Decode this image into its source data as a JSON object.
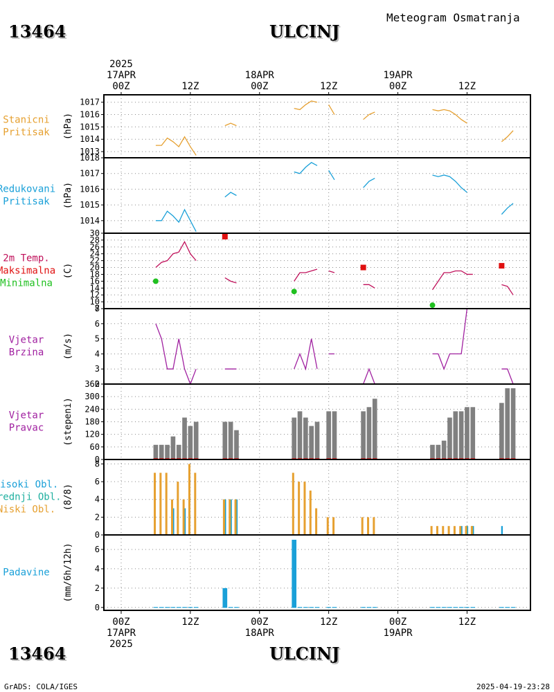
{
  "header": {
    "station_id": "13464",
    "station_name": "ULCINJ",
    "subtitle": "Meteogram Osmatranja"
  },
  "time_axis": {
    "top_labels": [
      {
        "hour": 0,
        "lines": [
          "2025",
          "17APR",
          "00Z"
        ]
      },
      {
        "hour": 12,
        "lines": [
          "12Z"
        ]
      },
      {
        "hour": 24,
        "lines": [
          "18APR",
          "00Z"
        ]
      },
      {
        "hour": 36,
        "lines": [
          "12Z"
        ]
      },
      {
        "hour": 48,
        "lines": [
          "19APR",
          "00Z"
        ]
      },
      {
        "hour": 60,
        "lines": [
          "12Z"
        ]
      }
    ],
    "bottom_labels": [
      {
        "hour": 0,
        "lines": [
          "00Z",
          "17APR",
          "2025"
        ]
      },
      {
        "hour": 12,
        "lines": [
          "12Z"
        ]
      },
      {
        "hour": 24,
        "lines": [
          "00Z",
          "18APR"
        ]
      },
      {
        "hour": 36,
        "lines": [
          "12Z"
        ]
      },
      {
        "hour": 48,
        "lines": [
          "00Z",
          "19APR"
        ]
      },
      {
        "hour": 60,
        "lines": [
          "12Z"
        ]
      }
    ],
    "x_range_hours": [
      -3,
      71
    ]
  },
  "footer": {
    "left": "GrADS: COLA/IGES",
    "right": "2025-04-19-23:28"
  },
  "chart_data": [
    {
      "type": "line",
      "panel": "stanicni-pritisak",
      "labels": [
        "Stanicni",
        "Pritisak"
      ],
      "label_colors": [
        "#e6a030",
        "#e6a030"
      ],
      "ylabel": "(hPa)",
      "ylim": [
        1012.5,
        1017.6
      ],
      "yticks": [
        1013,
        1014,
        1015,
        1016,
        1017
      ],
      "ytick_labels": [
        "1013",
        "1014",
        "1015",
        "1016",
        "1017"
      ],
      "color": "#e6a030",
      "series": [
        {
          "segments": [
            [
              [
                6,
                1013.5
              ],
              [
                7,
                1013.5
              ],
              [
                8,
                1014.1
              ],
              [
                9,
                1013.8
              ],
              [
                10,
                1013.4
              ],
              [
                11,
                1014.2
              ],
              [
                12,
                1013.4
              ],
              [
                13,
                1012.7
              ]
            ],
            [
              [
                18,
                1015.1
              ],
              [
                19,
                1015.3
              ],
              [
                20,
                1015.1
              ]
            ],
            [
              [
                30,
                1016.5
              ],
              [
                31,
                1016.4
              ],
              [
                32,
                1016.8
              ],
              [
                33,
                1017.1
              ],
              [
                34,
                1017.0
              ]
            ],
            [
              [
                36,
                1016.8
              ],
              [
                37,
                1016.0
              ]
            ],
            [
              [
                42,
                1015.6
              ],
              [
                43,
                1016.0
              ],
              [
                44,
                1016.2
              ]
            ],
            [
              [
                54,
                1016.4
              ],
              [
                55,
                1016.3
              ],
              [
                56,
                1016.4
              ],
              [
                57,
                1016.3
              ],
              [
                58,
                1016.0
              ],
              [
                59,
                1015.6
              ],
              [
                60,
                1015.3
              ]
            ],
            [
              [
                66,
                1013.8
              ],
              [
                67,
                1014.2
              ],
              [
                68,
                1014.7
              ]
            ]
          ]
        }
      ]
    },
    {
      "type": "line",
      "panel": "redukovani-pritisak",
      "labels": [
        "Redukovani",
        "Pritisak"
      ],
      "label_colors": [
        "#1aa0d8",
        "#1aa0d8"
      ],
      "ylabel": "(hPa)",
      "ylim": [
        1013.2,
        1018.0
      ],
      "yticks": [
        1014,
        1015,
        1016,
        1017,
        1018
      ],
      "ytick_labels": [
        "1014",
        "1015",
        "1016",
        "1017",
        "1018"
      ],
      "color": "#1aa0d8",
      "series": [
        {
          "segments": [
            [
              [
                6,
                1014.0
              ],
              [
                7,
                1014.0
              ],
              [
                8,
                1014.6
              ],
              [
                9,
                1014.3
              ],
              [
                10,
                1013.9
              ],
              [
                11,
                1014.7
              ],
              [
                12,
                1014.0
              ],
              [
                13,
                1013.3
              ]
            ],
            [
              [
                18,
                1015.5
              ],
              [
                19,
                1015.8
              ],
              [
                20,
                1015.6
              ]
            ],
            [
              [
                30,
                1017.1
              ],
              [
                31,
                1017.0
              ],
              [
                32,
                1017.4
              ],
              [
                33,
                1017.7
              ],
              [
                34,
                1017.5
              ]
            ],
            [
              [
                36,
                1017.2
              ],
              [
                37,
                1016.6
              ]
            ],
            [
              [
                42,
                1016.1
              ],
              [
                43,
                1016.5
              ],
              [
                44,
                1016.7
              ]
            ],
            [
              [
                54,
                1016.9
              ],
              [
                55,
                1016.8
              ],
              [
                56,
                1016.9
              ],
              [
                57,
                1016.8
              ],
              [
                58,
                1016.5
              ],
              [
                59,
                1016.1
              ],
              [
                60,
                1015.8
              ]
            ],
            [
              [
                66,
                1014.4
              ],
              [
                67,
                1014.8
              ],
              [
                68,
                1015.1
              ]
            ]
          ]
        }
      ]
    },
    {
      "type": "line",
      "panel": "temperatura",
      "labels": [
        "2m Temp.",
        "Maksimalna",
        "Minimalna"
      ],
      "label_colors": [
        "#c0105a",
        "#e01010",
        "#20c020"
      ],
      "ylabel": "(C)",
      "ylim": [
        8,
        30
      ],
      "yticks": [
        8,
        10,
        12,
        14,
        16,
        18,
        20,
        22,
        24,
        26,
        28,
        30
      ],
      "ytick_labels": [
        "8",
        "10",
        "12",
        "14",
        "16",
        "18",
        "20",
        "22",
        "24",
        "26",
        "28",
        "30"
      ],
      "color": "#c0105a",
      "series": [
        {
          "name": "2m Temp.",
          "segments": [
            [
              [
                6,
                20
              ],
              [
                7,
                21.5
              ],
              [
                8,
                22
              ],
              [
                9,
                24
              ],
              [
                10,
                24.5
              ],
              [
                11,
                27.5
              ],
              [
                12,
                24
              ],
              [
                13,
                22
              ]
            ],
            [
              [
                18,
                17
              ],
              [
                19,
                16
              ],
              [
                20,
                15.5
              ]
            ],
            [
              [
                30,
                16
              ],
              [
                31,
                18.5
              ],
              [
                32,
                18.5
              ],
              [
                33,
                19
              ],
              [
                34,
                19.5
              ]
            ],
            [
              [
                36,
                19
              ],
              [
                37,
                18.5
              ]
            ],
            [
              [
                42,
                15
              ],
              [
                43,
                15
              ],
              [
                44,
                14
              ]
            ],
            [
              [
                54,
                13.5
              ],
              [
                55,
                16
              ],
              [
                56,
                18.5
              ],
              [
                57,
                18.5
              ],
              [
                58,
                19
              ],
              [
                59,
                19
              ],
              [
                60,
                18
              ],
              [
                61,
                18
              ]
            ],
            [
              [
                66,
                15
              ],
              [
                67,
                14.5
              ],
              [
                68,
                12
              ]
            ]
          ]
        }
      ],
      "max_points": [
        [
          18,
          29
        ],
        [
          42,
          20
        ],
        [
          66,
          20.5
        ]
      ],
      "min_points": [
        [
          6,
          16
        ],
        [
          30,
          13
        ],
        [
          54,
          9
        ]
      ],
      "max_color": "#e01010",
      "min_color": "#20c020"
    },
    {
      "type": "line",
      "panel": "vjetar-brzina",
      "labels": [
        "Vjetar",
        "Brzina"
      ],
      "label_colors": [
        "#a020a0",
        "#a020a0"
      ],
      "ylabel": "(m/s)",
      "ylim": [
        2,
        7
      ],
      "yticks": [
        2,
        3,
        4,
        5,
        6,
        7
      ],
      "ytick_labels": [
        "2",
        "3",
        "4",
        "5",
        "6",
        "7"
      ],
      "color": "#a020a0",
      "series": [
        {
          "segments": [
            [
              [
                6,
                6
              ],
              [
                7,
                5
              ],
              [
                8,
                3
              ],
              [
                9,
                3
              ],
              [
                10,
                5
              ],
              [
                11,
                3
              ],
              [
                12,
                2
              ],
              [
                13,
                3
              ]
            ],
            [
              [
                18,
                3
              ],
              [
                19,
                3
              ],
              [
                20,
                3
              ]
            ],
            [
              [
                30,
                3
              ],
              [
                31,
                4
              ],
              [
                32,
                3
              ],
              [
                33,
                5
              ],
              [
                34,
                3
              ]
            ],
            [
              [
                36,
                4
              ],
              [
                37,
                4
              ]
            ],
            [
              [
                42,
                2
              ],
              [
                43,
                3
              ],
              [
                44,
                2
              ]
            ],
            [
              [
                54,
                4
              ],
              [
                55,
                4
              ],
              [
                56,
                3
              ],
              [
                57,
                4
              ],
              [
                58,
                4
              ],
              [
                59,
                4
              ],
              [
                60,
                7
              ],
              [
                61,
                7
              ]
            ],
            [
              [
                66,
                3
              ],
              [
                67,
                3
              ],
              [
                68,
                2
              ]
            ]
          ]
        }
      ]
    },
    {
      "type": "bar",
      "panel": "vjetar-pravac",
      "labels": [
        "Vjetar",
        "Pravac"
      ],
      "label_colors": [
        "#a020a0",
        "#a020a0"
      ],
      "ylabel": "(stepeni)",
      "ylim": [
        0,
        360
      ],
      "yticks": [
        0,
        60,
        120,
        180,
        240,
        300,
        360
      ],
      "ytick_labels": [
        "0",
        "60",
        "120",
        "180",
        "240",
        "300",
        "360"
      ],
      "color": "#808080",
      "x": [
        6,
        7,
        8,
        9,
        10,
        11,
        12,
        13,
        18,
        19,
        20,
        30,
        31,
        32,
        33,
        34,
        36,
        37,
        42,
        43,
        44,
        54,
        55,
        56,
        57,
        58,
        59,
        60,
        61,
        66,
        67,
        68
      ],
      "values": [
        70,
        70,
        70,
        110,
        70,
        200,
        160,
        180,
        180,
        180,
        140,
        200,
        230,
        200,
        160,
        180,
        230,
        230,
        230,
        250,
        290,
        70,
        70,
        90,
        200,
        230,
        230,
        250,
        250,
        270,
        340,
        340
      ],
      "base_color": "#e01010"
    },
    {
      "type": "bar",
      "panel": "oblaci",
      "labels": [
        "Visoki Obl.",
        "Srednji Obl.",
        "Niski Obl."
      ],
      "label_colors": [
        "#1aa0d8",
        "#20b0a0",
        "#e6a030"
      ],
      "ylabel": "(8/8)",
      "ylim": [
        0,
        8.5
      ],
      "yticks": [
        0,
        2,
        4,
        6,
        8
      ],
      "ytick_labels": [
        "0",
        "2",
        "4",
        "6",
        "8"
      ],
      "x": [
        6,
        7,
        8,
        9,
        10,
        11,
        12,
        13,
        18,
        19,
        20,
        30,
        31,
        32,
        33,
        34,
        36,
        37,
        42,
        43,
        44,
        54,
        55,
        56,
        57,
        58,
        59,
        60,
        61,
        66,
        67,
        68
      ],
      "series": [
        {
          "name": "Visoki Obl.",
          "color": "#1aa0d8",
          "values": [
            0,
            0,
            0,
            3,
            0,
            3,
            0,
            0,
            4,
            4,
            4,
            0,
            0,
            0,
            0,
            0,
            0,
            0,
            0,
            0,
            0,
            0,
            0,
            0,
            0,
            0,
            1,
            1,
            1,
            1,
            0,
            0
          ]
        },
        {
          "name": "Srednji Obl.",
          "color": "#20b0a0",
          "values": [
            0,
            0,
            0,
            0,
            0,
            0,
            0,
            0,
            4,
            4,
            4,
            0,
            0,
            0,
            0,
            0,
            0,
            0,
            0,
            0,
            0,
            0,
            0,
            0,
            0,
            0,
            0,
            1,
            1,
            0,
            0,
            0
          ]
        },
        {
          "name": "Niski Obl.",
          "color": "#e6a030",
          "values": [
            7,
            7,
            7,
            4,
            6,
            4,
            8,
            7,
            4,
            4,
            4,
            7,
            6,
            6,
            5,
            3,
            2,
            2,
            2,
            2,
            2,
            1,
            1,
            1,
            1,
            1,
            1,
            1,
            1,
            0,
            0,
            0
          ]
        }
      ]
    },
    {
      "type": "bar",
      "panel": "padavine",
      "labels": [
        "Padavine"
      ],
      "label_colors": [
        "#1aa0d8"
      ],
      "ylabel": "(mm/6h/12h)",
      "ylim": [
        -0.3,
        7.5
      ],
      "yticks": [
        0,
        2,
        4,
        6
      ],
      "ytick_labels": [
        "0",
        "2",
        "4",
        "6"
      ],
      "color": "#1aa0d8",
      "x": [
        6,
        7,
        8,
        9,
        10,
        11,
        12,
        13,
        18,
        19,
        20,
        30,
        31,
        32,
        33,
        34,
        36,
        37,
        42,
        43,
        44,
        54,
        55,
        56,
        57,
        58,
        59,
        60,
        61,
        66,
        67,
        68
      ],
      "values": [
        0,
        0,
        0,
        0,
        0,
        0,
        0,
        0,
        2.0,
        0,
        0,
        7.0,
        0,
        0,
        0,
        0,
        0,
        0,
        0,
        0,
        0,
        0,
        0,
        0,
        0,
        0,
        0,
        0,
        0,
        0,
        0,
        0
      ]
    }
  ]
}
